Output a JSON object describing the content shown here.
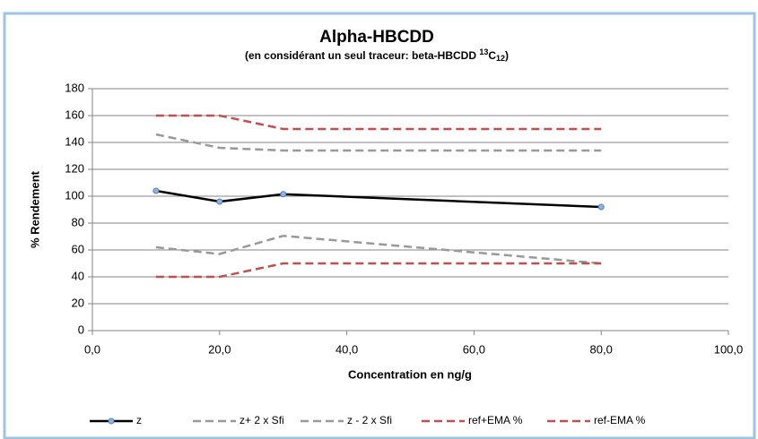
{
  "chart_data": {
    "type": "line",
    "title": "Alpha-HBCDD",
    "subtitle": [
      "(en considérant un seul traceur: beta-HBCDD ",
      "13",
      "C",
      "12",
      ")"
    ],
    "x_label": "Concentration en ng/g",
    "y_label": "% Rendement",
    "xlim": [
      0,
      100
    ],
    "xticks": [
      {
        "value": 0,
        "label": "0,0"
      },
      {
        "value": 20,
        "label": "20,0"
      },
      {
        "value": 40,
        "label": "40,0"
      },
      {
        "value": 60,
        "label": "60,0"
      },
      {
        "value": 80,
        "label": "80,0"
      },
      {
        "value": 100,
        "label": "100,0"
      }
    ],
    "ylim": [
      0,
      180
    ],
    "yticks": [
      0,
      20,
      40,
      60,
      80,
      100,
      120,
      140,
      160,
      180
    ],
    "grid": true,
    "legend": "bottom",
    "x": [
      10,
      20,
      30,
      80
    ],
    "series": [
      {
        "name": "z",
        "color": "#000000",
        "dashed": false,
        "markers": true,
        "values": [
          104,
          96,
          101.5,
          92
        ]
      },
      {
        "name": "z+ 2 x Sfi",
        "color": "#999999",
        "dashed": true,
        "markers": false,
        "values": [
          146,
          136,
          134,
          134
        ]
      },
      {
        "name": "z - 2 x Sfi",
        "color": "#999999",
        "dashed": true,
        "markers": false,
        "values": [
          62,
          57,
          70.5,
          50
        ]
      },
      {
        "name": "ref+EMA %",
        "color": "#c0504d",
        "dashed": true,
        "markers": false,
        "values": [
          160,
          160,
          150,
          150
        ]
      },
      {
        "name": "ref-EMA %",
        "color": "#c0504d",
        "dashed": true,
        "markers": false,
        "values": [
          40,
          40,
          50,
          50
        ]
      }
    ]
  }
}
